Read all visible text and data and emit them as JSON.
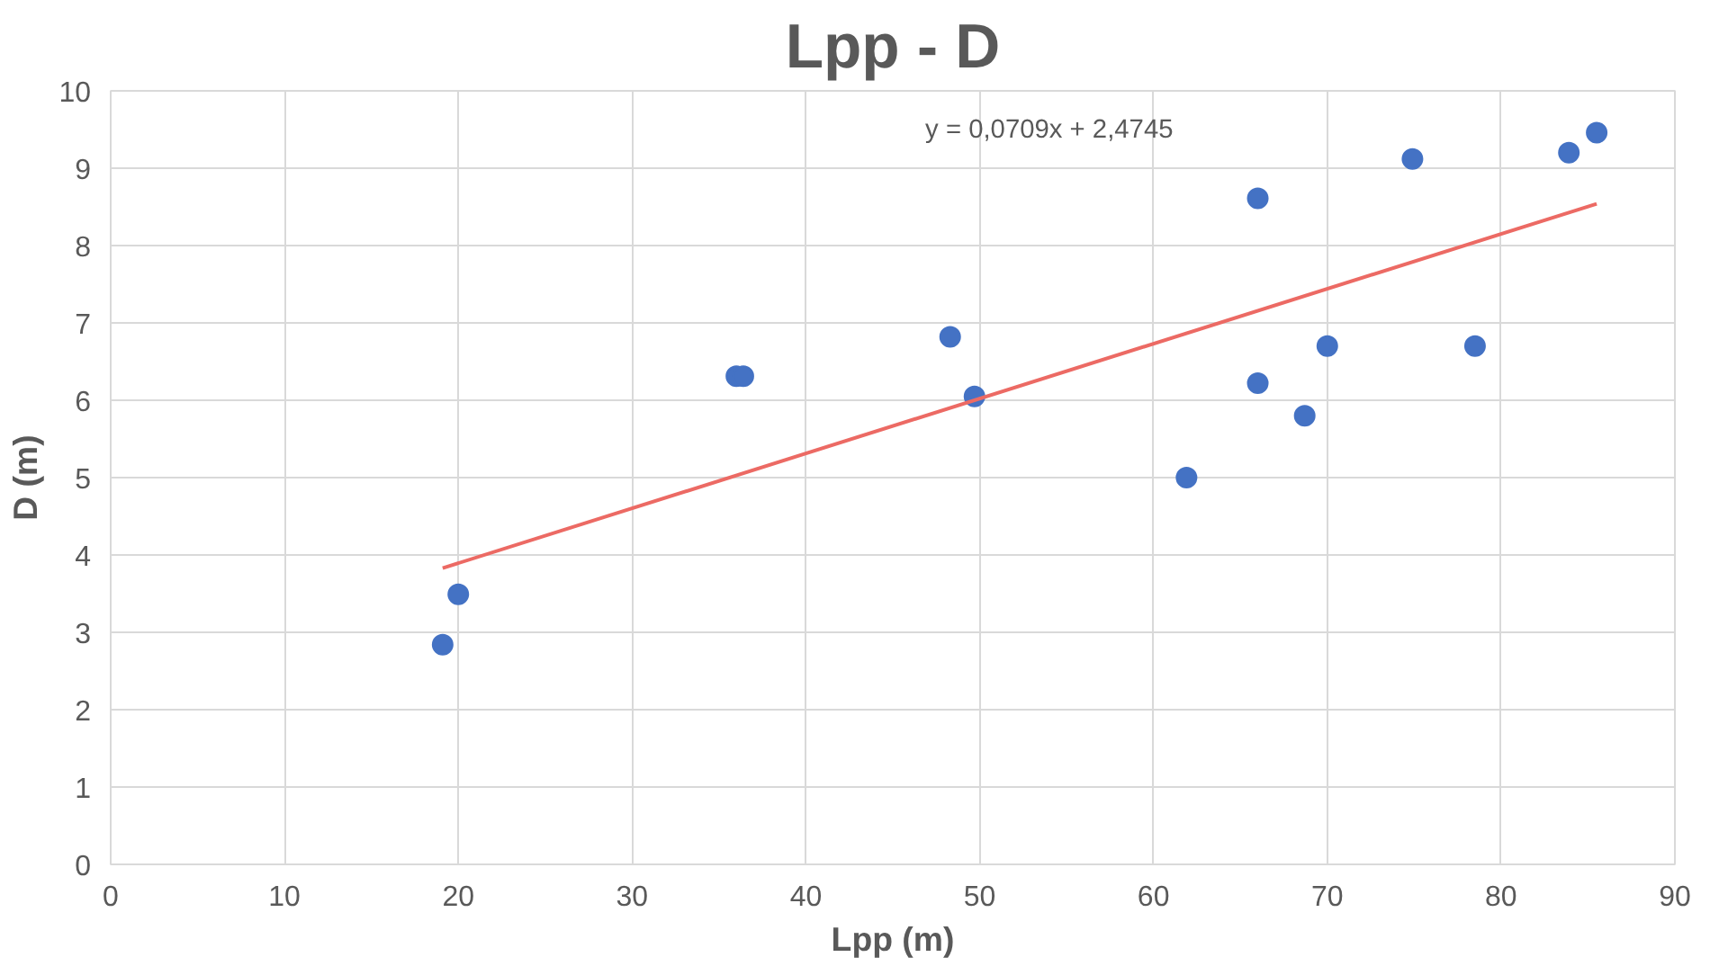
{
  "chart_data": {
    "type": "scatter",
    "title": "Lpp - D",
    "xlabel": "Lpp (m)",
    "ylabel": "D (m)",
    "xlim": [
      0,
      90
    ],
    "xticks": [
      0,
      10,
      20,
      30,
      40,
      50,
      60,
      70,
      80,
      90
    ],
    "ylim": [
      0,
      10
    ],
    "yticks": [
      0,
      1,
      2,
      3,
      4,
      5,
      6,
      7,
      8,
      9,
      10
    ],
    "grid": true,
    "series": [
      {
        "marker": "circle",
        "color": "#4472c4",
        "x": [
          19.1,
          20.0,
          36.0,
          36.4,
          48.3,
          49.7,
          61.9,
          66.0,
          66.0,
          68.7,
          70.0,
          74.9,
          78.5,
          83.9,
          85.5
        ],
        "values": [
          2.84,
          3.49,
          6.31,
          6.31,
          6.82,
          6.05,
          5.0,
          8.61,
          6.22,
          5.8,
          6.7,
          9.12,
          6.7,
          9.2,
          9.46
        ]
      },
      {
        "type": "line",
        "color": "#ec6a64",
        "x": [
          19.1,
          85.5
        ],
        "values": [
          3.83,
          8.54
        ]
      }
    ],
    "annotations": [
      "y = 0,0709x + 2,4745"
    ]
  }
}
